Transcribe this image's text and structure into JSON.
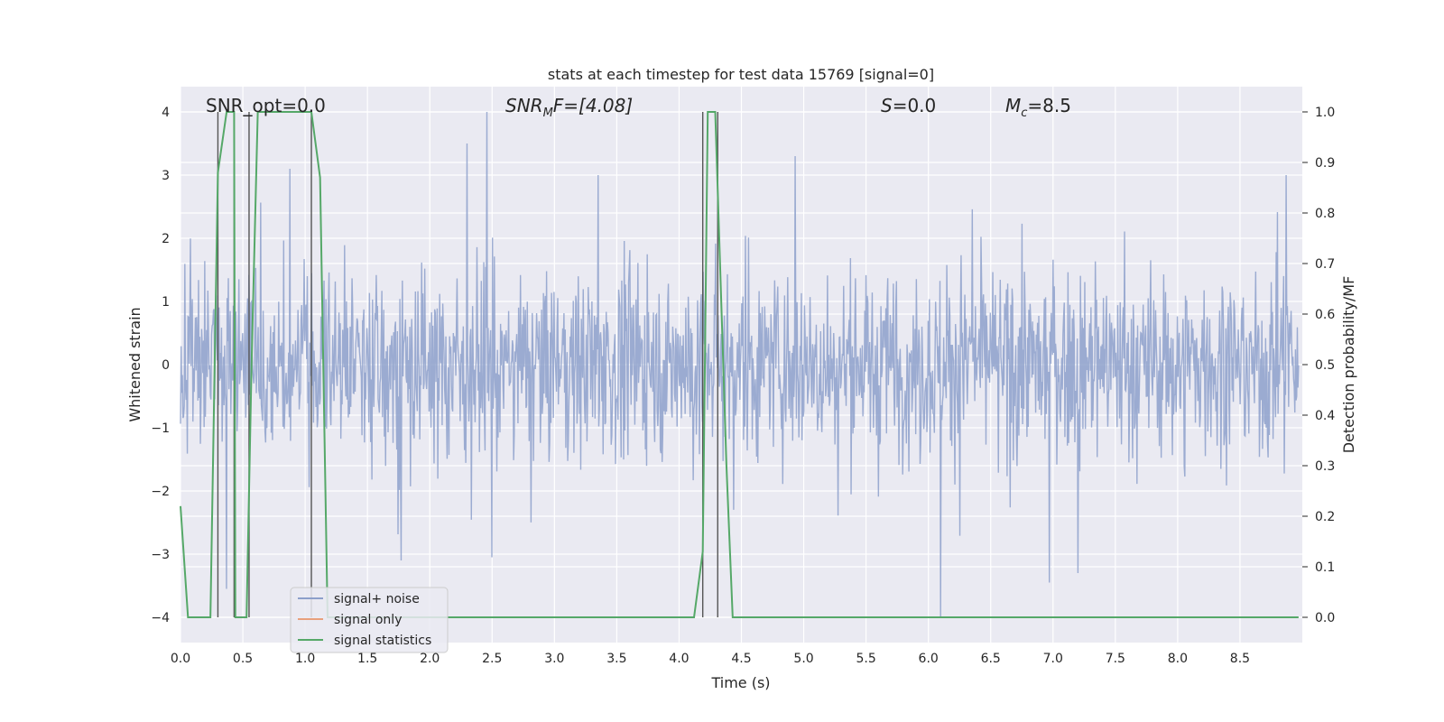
{
  "chart_data": {
    "type": "line",
    "title": "stats at each timestep for test data 15769 [signal=0]",
    "xlabel": "Time (s)",
    "ylabel": "Whitened strain",
    "y2label": "Detection probability/MF",
    "xlim": [
      0.0,
      9.0
    ],
    "ylim": [
      -4.4,
      4.4
    ],
    "y2lim": [
      -0.05,
      1.05
    ],
    "xticks": [
      0.0,
      0.5,
      1.0,
      1.5,
      2.0,
      2.5,
      3.0,
      3.5,
      4.0,
      4.5,
      5.0,
      5.5,
      6.0,
      6.5,
      7.0,
      7.5,
      8.0,
      8.5
    ],
    "xtick_labels": [
      "0.0",
      "0.5",
      "1.0",
      "1.5",
      "2.0",
      "2.5",
      "3.0",
      "3.5",
      "4.0",
      "4.5",
      "5.0",
      "5.5",
      "6.0",
      "6.5",
      "7.0",
      "7.5",
      "8.0",
      "8.5"
    ],
    "yticks": [
      -4,
      -3,
      -2,
      -1,
      0,
      1,
      2,
      3,
      4
    ],
    "ytick_labels": [
      "−4",
      "−3",
      "−2",
      "−1",
      "0",
      "1",
      "2",
      "3",
      "4"
    ],
    "y2ticks": [
      0.0,
      0.1,
      0.2,
      0.3,
      0.4,
      0.5,
      0.6,
      0.7,
      0.8,
      0.9,
      1.0
    ],
    "y2tick_labels": [
      "0.0",
      "0.1",
      "0.2",
      "0.3",
      "0.4",
      "0.5",
      "0.6",
      "0.7",
      "0.8",
      "0.9",
      "1.0"
    ],
    "grid": true,
    "legend_position": "lower-left",
    "series": [
      {
        "name": "signal+ noise",
        "color": "#8da0cb",
        "axis": "left",
        "kind": "noise",
        "amplitude_core": 1.0,
        "sample_count": 1800,
        "spikes": [
          {
            "x": 2.46,
            "y": 4.0
          },
          {
            "x": 2.3,
            "y": 3.5
          },
          {
            "x": 4.93,
            "y": 3.3
          },
          {
            "x": 0.88,
            "y": 3.1
          },
          {
            "x": 8.87,
            "y": 3.0
          },
          {
            "x": 3.35,
            "y": 3.0
          },
          {
            "x": 6.1,
            "y": -4.0
          },
          {
            "x": 6.97,
            "y": -3.45
          },
          {
            "x": 7.2,
            "y": -3.3
          },
          {
            "x": 0.37,
            "y": -3.55
          },
          {
            "x": 1.77,
            "y": -3.1
          },
          {
            "x": 2.5,
            "y": -3.05
          }
        ]
      },
      {
        "name": "signal only",
        "color": "#e8a07d",
        "axis": "left",
        "kind": "flat",
        "points": []
      },
      {
        "name": "signal statistics",
        "color": "#55a868",
        "axis": "right",
        "kind": "line",
        "points": [
          [
            0.0,
            0.22
          ],
          [
            0.06,
            0.0
          ],
          [
            0.24,
            0.0
          ],
          [
            0.3,
            0.88
          ],
          [
            0.37,
            1.0
          ],
          [
            0.43,
            1.0
          ],
          [
            0.44,
            0.0
          ],
          [
            0.53,
            0.0
          ],
          [
            0.57,
            0.5
          ],
          [
            0.62,
            1.0
          ],
          [
            1.05,
            1.0
          ],
          [
            1.12,
            0.87
          ],
          [
            1.18,
            0.0
          ],
          [
            4.12,
            0.0
          ],
          [
            4.19,
            0.13
          ],
          [
            4.23,
            1.0
          ],
          [
            4.29,
            1.0
          ],
          [
            4.38,
            0.3
          ],
          [
            4.43,
            0.0
          ],
          [
            8.97,
            0.0
          ]
        ]
      }
    ],
    "vertical_markers": [
      0.3,
      0.43,
      0.55,
      1.05,
      4.19,
      4.31
    ],
    "annotations": [
      {
        "id": "snr_opt",
        "text": "SNR_opt=0.0",
        "x": 0.2,
        "y": 4.05
      },
      {
        "id": "snr_mf",
        "text": "SNR_MF=[4.08]",
        "x": 2.6,
        "y": 4.05
      },
      {
        "id": "s",
        "text": "S=0.0",
        "x": 5.6,
        "y": 4.05
      },
      {
        "id": "mc",
        "text": "M_c=8.5",
        "x": 6.6,
        "y": 4.05
      }
    ]
  },
  "annotation_text": {
    "snr_opt": "SNR_opt=0.0",
    "snr_mf_main": "SNR",
    "snr_mf_sub": "M",
    "snr_mf_rest": "F=[4.08]",
    "s_main": "S",
    "s_rest": "=0.0",
    "mc_main": "M",
    "mc_sub": "c",
    "mc_rest": "=8.5"
  },
  "colors": {
    "plot_background": "#eaeaf2",
    "grid": "#ffffff",
    "noise": "#8da0cb",
    "signal_only": "#e8a07d",
    "statistics": "#55a868",
    "marker": "#555555"
  }
}
